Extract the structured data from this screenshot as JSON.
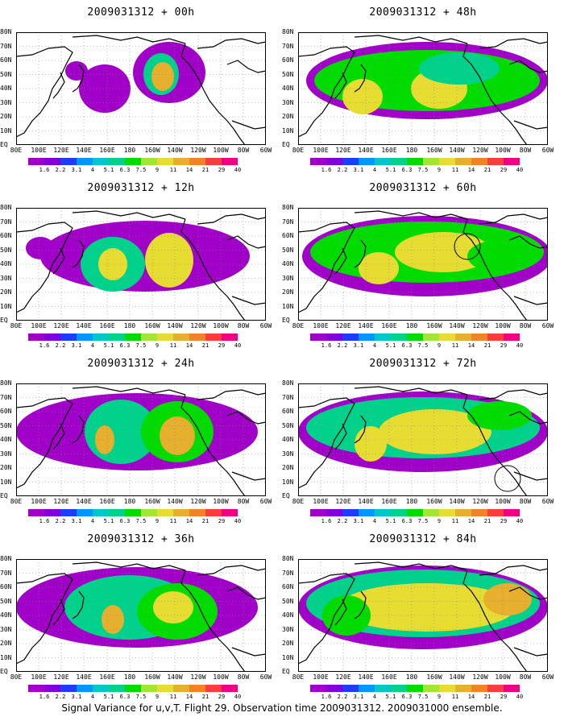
{
  "panels": [
    {
      "title": "2009031312 + 00h"
    },
    {
      "title": "2009031312 + 48h"
    },
    {
      "title": "2009031312 + 12h"
    },
    {
      "title": "2009031312 + 60h"
    },
    {
      "title": "2009031312 + 24h"
    },
    {
      "title": "2009031312 + 72h"
    },
    {
      "title": "2009031312 + 36h"
    },
    {
      "title": "2009031312 + 84h"
    }
  ],
  "lat_labels": [
    "80N",
    "70N",
    "60N",
    "50N",
    "40N",
    "30N",
    "20N",
    "10N",
    "EQ"
  ],
  "lon_labels": [
    "80E",
    "100E",
    "120E",
    "140E",
    "160E",
    "180",
    "160W",
    "140W",
    "120W",
    "100W",
    "80W",
    "60W"
  ],
  "colorbar": {
    "labels": [
      "1.6",
      "2.2",
      "3.1",
      "4",
      "5.1",
      "6.3",
      "7.5",
      "9",
      "11",
      "14",
      "21",
      "29",
      "40"
    ],
    "colors": [
      "#a000c8",
      "#8200dc",
      "#1e3cff",
      "#0096ff",
      "#00c8c8",
      "#00d28c",
      "#00dc00",
      "#a0e632",
      "#e6dc32",
      "#e6af2d",
      "#f08228",
      "#fa3c3c",
      "#f00082"
    ]
  },
  "caption": "Signal Variance for u,v,T. Flight 29. Observation time 2009031312. 2009031000 ensemble."
}
